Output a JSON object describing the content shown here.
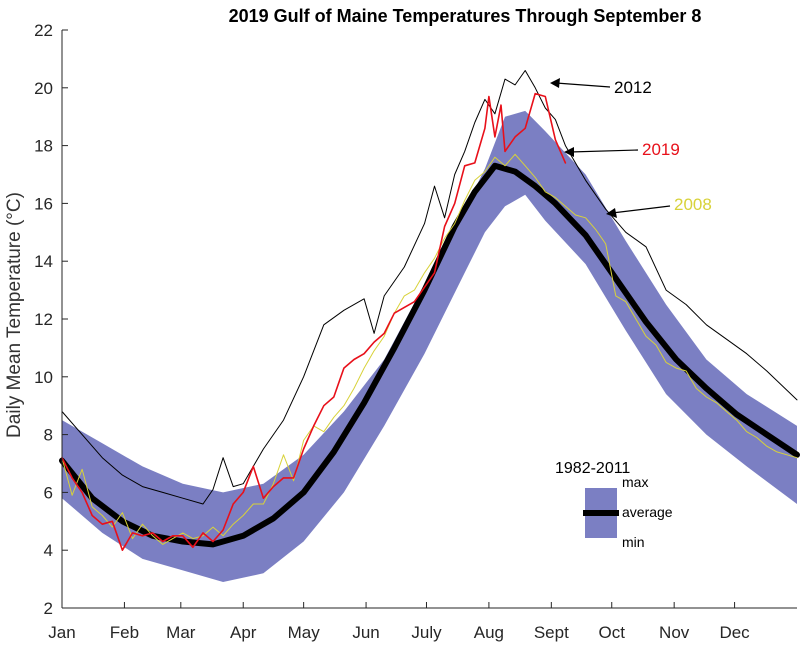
{
  "chart_data": {
    "type": "line",
    "title": "2019 Gulf of Maine Temperatures Through September 8",
    "xlabel": "",
    "ylabel": "Daily Mean Temperature (°C)",
    "xlim": [
      0,
      365
    ],
    "ylim": [
      2,
      22
    ],
    "yticks": [
      2,
      4,
      6,
      8,
      10,
      12,
      14,
      16,
      18,
      20,
      22
    ],
    "xtick_labels": [
      "Jan",
      "Feb",
      "Mar",
      "Apr",
      "May",
      "Jun",
      "July",
      "Aug",
      "Sept",
      "Oct",
      "Nov",
      "Dec"
    ],
    "xtick_days": [
      0,
      31,
      59,
      90,
      120,
      151,
      181,
      212,
      243,
      273,
      304,
      334
    ],
    "grid": false,
    "band": {
      "x": [
        0,
        20,
        40,
        60,
        80,
        100,
        120,
        140,
        160,
        180,
        200,
        210,
        220,
        230,
        240,
        260,
        280,
        300,
        320,
        340,
        365
      ],
      "max": [
        8.5,
        7.7,
        6.9,
        6.3,
        6.0,
        6.3,
        7.3,
        8.8,
        10.6,
        13.2,
        15.8,
        17.2,
        19.0,
        19.2,
        18.5,
        17.0,
        14.7,
        12.5,
        10.6,
        9.4,
        8.3
      ],
      "min": [
        5.8,
        4.6,
        3.7,
        3.3,
        2.9,
        3.2,
        4.3,
        6.0,
        8.3,
        10.8,
        13.6,
        15.0,
        15.9,
        16.3,
        15.4,
        13.9,
        11.6,
        9.4,
        8.0,
        6.9,
        5.6
      ]
    },
    "series": [
      {
        "name": "average",
        "color": "#000000",
        "x": [
          0,
          15,
          30,
          45,
          60,
          75,
          90,
          105,
          120,
          135,
          150,
          165,
          180,
          195,
          205,
          215,
          225,
          235,
          245,
          260,
          275,
          290,
          305,
          320,
          335,
          350,
          365
        ],
        "y": [
          7.1,
          5.8,
          5.0,
          4.5,
          4.3,
          4.2,
          4.5,
          5.1,
          6.0,
          7.4,
          9.1,
          11.0,
          13.0,
          15.2,
          16.4,
          17.3,
          17.1,
          16.6,
          16.0,
          14.9,
          13.4,
          11.9,
          10.6,
          9.6,
          8.7,
          8.0,
          7.3
        ]
      },
      {
        "name": "2012",
        "color": "#000000",
        "x": [
          0,
          10,
          20,
          30,
          40,
          50,
          60,
          70,
          75,
          80,
          85,
          90,
          100,
          110,
          120,
          130,
          140,
          150,
          155,
          160,
          170,
          180,
          185,
          190,
          195,
          200,
          205,
          210,
          215,
          220,
          225,
          230,
          235,
          240,
          245,
          250,
          260,
          270,
          280,
          290,
          300,
          310,
          320,
          330,
          340,
          350,
          365
        ],
        "y": [
          8.8,
          8.0,
          7.2,
          6.6,
          6.2,
          6.0,
          5.8,
          5.6,
          6.1,
          7.2,
          6.2,
          6.3,
          7.5,
          8.5,
          10.0,
          11.8,
          12.3,
          12.7,
          11.5,
          12.8,
          13.8,
          15.3,
          16.6,
          15.5,
          17.0,
          17.8,
          18.8,
          19.6,
          19.1,
          20.3,
          20.1,
          20.6,
          20.0,
          19.3,
          18.9,
          18.0,
          16.8,
          15.8,
          15.0,
          14.5,
          13.0,
          12.5,
          11.8,
          11.3,
          10.8,
          10.2,
          9.2
        ]
      },
      {
        "name": "2008",
        "color": "#d8d23a",
        "x": [
          0,
          5,
          10,
          15,
          20,
          25,
          30,
          35,
          40,
          45,
          50,
          55,
          60,
          65,
          70,
          75,
          80,
          85,
          90,
          95,
          100,
          105,
          110,
          115,
          120,
          125,
          130,
          135,
          140,
          145,
          150,
          155,
          160,
          165,
          170,
          175,
          180,
          185,
          190,
          195,
          200,
          205,
          210,
          215,
          220,
          225,
          230,
          235,
          240,
          245,
          250,
          255,
          260,
          265,
          270,
          275,
          280,
          285,
          290,
          295,
          300,
          305,
          310,
          315,
          320,
          325,
          330,
          335,
          340,
          345,
          350,
          355,
          360,
          365
        ],
        "y": [
          7.2,
          5.9,
          6.8,
          5.5,
          5.2,
          4.8,
          5.3,
          4.4,
          4.9,
          4.5,
          4.2,
          4.4,
          4.6,
          4.4,
          4.5,
          4.8,
          4.5,
          4.9,
          5.2,
          5.6,
          5.6,
          6.3,
          7.3,
          6.4,
          7.8,
          8.3,
          8.1,
          8.6,
          9.0,
          9.6,
          10.3,
          10.9,
          11.4,
          12.2,
          12.8,
          13.0,
          13.6,
          14.1,
          14.8,
          15.3,
          16.1,
          16.8,
          17.1,
          17.6,
          17.3,
          17.7,
          17.3,
          16.9,
          16.4,
          16.2,
          15.9,
          15.6,
          15.5,
          15.1,
          14.6,
          12.8,
          12.6,
          12.0,
          11.4,
          11.1,
          10.5,
          10.3,
          10.2,
          9.6,
          9.3,
          9.1,
          8.8,
          8.5,
          8.1,
          7.9,
          7.6,
          7.4,
          7.3,
          7.2
        ]
      },
      {
        "name": "2019",
        "color": "#e8101a",
        "x": [
          0,
          5,
          10,
          15,
          20,
          25,
          30,
          35,
          40,
          45,
          50,
          55,
          60,
          65,
          70,
          75,
          80,
          85,
          90,
          95,
          100,
          105,
          110,
          115,
          120,
          125,
          130,
          135,
          140,
          145,
          150,
          155,
          160,
          165,
          170,
          175,
          180,
          185,
          190,
          195,
          200,
          205,
          210,
          212,
          215,
          218,
          220,
          225,
          230,
          235,
          240,
          245,
          250
        ],
        "y": [
          7.2,
          6.5,
          6.0,
          5.2,
          4.9,
          5.0,
          4.0,
          4.6,
          4.5,
          4.6,
          4.3,
          4.5,
          4.5,
          4.1,
          4.6,
          4.3,
          4.7,
          5.6,
          6.0,
          6.9,
          5.8,
          6.2,
          6.5,
          6.5,
          7.5,
          8.3,
          9.0,
          9.3,
          10.3,
          10.6,
          10.8,
          11.2,
          11.5,
          12.2,
          12.4,
          12.6,
          13.1,
          13.6,
          15.2,
          16.0,
          17.3,
          17.4,
          18.6,
          19.7,
          18.3,
          19.4,
          17.8,
          18.3,
          18.6,
          19.8,
          19.7,
          18.2,
          17.4
        ]
      }
    ],
    "annotations": [
      {
        "label": "2012",
        "color": "#000000"
      },
      {
        "label": "2019",
        "color": "#e8101a"
      },
      {
        "label": "2008",
        "color": "#d8d23a"
      }
    ],
    "legend": {
      "title": "1982-2011",
      "band_color": "#7b7fc3",
      "max_label": "max",
      "avg_label": "average",
      "min_label": "min"
    }
  }
}
